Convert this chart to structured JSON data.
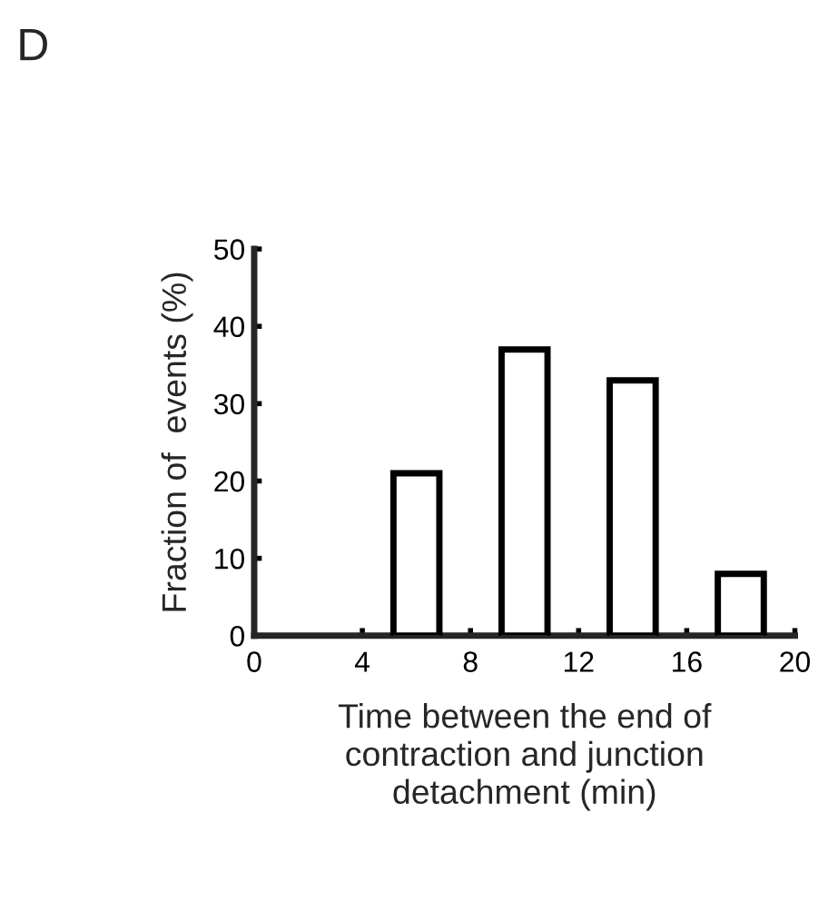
{
  "chart_data": {
    "type": "bar",
    "title": "D",
    "xlabel": "Time between the end of\ncontraction and junction\ndetachment (min)",
    "ylabel": "Fraction of  events (%)",
    "x": [
      6,
      10,
      14,
      18
    ],
    "values": [
      21,
      37,
      33,
      8
    ],
    "color": "#ffffff",
    "xlim": [
      0,
      20
    ],
    "xticks": [
      0,
      4,
      8,
      12,
      16,
      20
    ],
    "ylim": [
      0,
      50
    ],
    "yticks": [
      0,
      10,
      20,
      30,
      40,
      50
    ],
    "grid": false
  }
}
